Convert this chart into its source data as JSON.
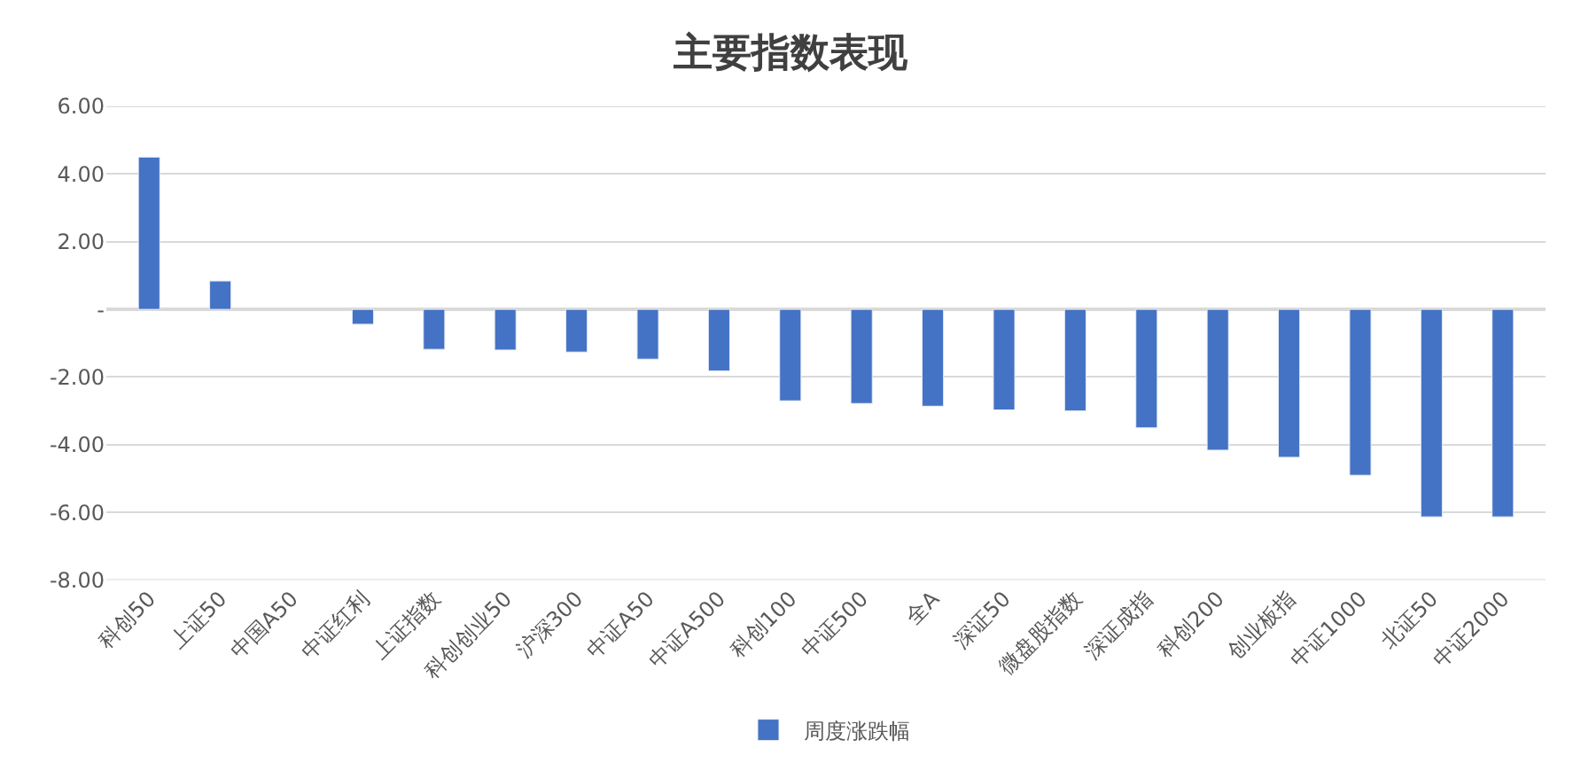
{
  "chart_data": {
    "type": "bar",
    "title": "主要指数表现",
    "categories": [
      "科创50",
      "上证50",
      "中国A50",
      "中证红利",
      "上证指数",
      "科创创业50",
      "沪深300",
      "中证A50",
      "中证A500",
      "科创100",
      "中证500",
      "全A",
      "深证50",
      "微盘股指数",
      "深证成指",
      "科创200",
      "创业板指",
      "中证1000",
      "北证50",
      "中证2000"
    ],
    "series": [
      {
        "name": "周度涨跌幅",
        "color": "#4472c4",
        "values": [
          4.5,
          0.84,
          null,
          -0.44,
          -1.18,
          -1.2,
          -1.26,
          -1.47,
          -1.82,
          -2.7,
          -2.78,
          -2.86,
          -2.97,
          -3.0,
          -3.5,
          -4.16,
          -4.37,
          -4.9,
          -6.13,
          -6.13
        ]
      }
    ],
    "ylim": [
      -8,
      6
    ],
    "yticks": [
      {
        "value": -8,
        "label": "-8.00"
      },
      {
        "value": -6,
        "label": "-6.00"
      },
      {
        "value": -4,
        "label": "-4.00"
      },
      {
        "value": -2,
        "label": "-2.00"
      },
      {
        "value": 0,
        "label": "-"
      },
      {
        "value": 2,
        "label": "2.00"
      },
      {
        "value": 4,
        "label": "4.00"
      },
      {
        "value": 6,
        "label": "6.00"
      }
    ],
    "grid": "y",
    "legend": "bottom"
  }
}
